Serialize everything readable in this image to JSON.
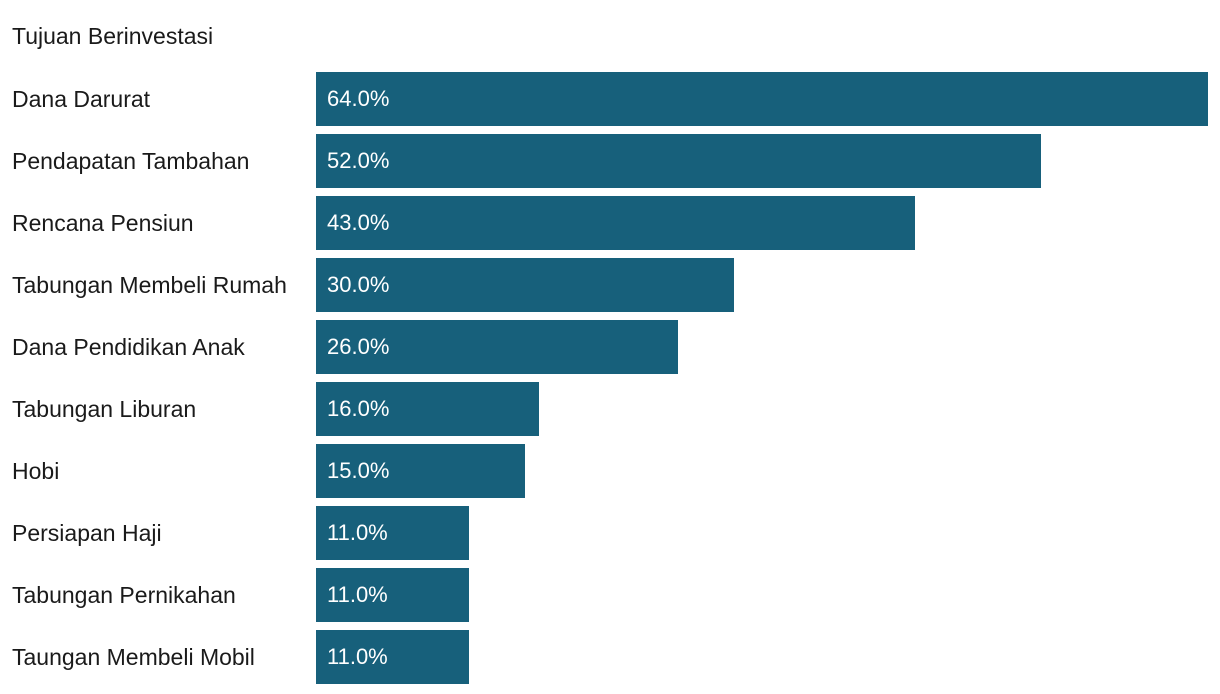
{
  "chart_data": {
    "type": "bar",
    "orientation": "horizontal",
    "title": "Tujuan Berinvestasi",
    "categories": [
      "Dana Darurat",
      "Pendapatan Tambahan",
      "Rencana Pensiun",
      "Tabungan Membeli Rumah",
      "Dana Pendidikan Anak",
      "Tabungan Liburan",
      "Hobi",
      "Persiapan Haji",
      "Tabungan Pernikahan",
      "Taungan Membeli Mobil"
    ],
    "values": [
      64.0,
      52.0,
      43.0,
      30.0,
      26.0,
      16.0,
      15.0,
      11.0,
      11.0,
      11.0
    ],
    "value_labels": [
      "64.0%",
      "52.0%",
      "43.0%",
      "30.0%",
      "26.0%",
      "16.0%",
      "15.0%",
      "11.0%",
      "11.0%",
      "11.0%"
    ],
    "bar_color": "#17607b",
    "value_label_color": "#ffffff",
    "grid": false
  }
}
